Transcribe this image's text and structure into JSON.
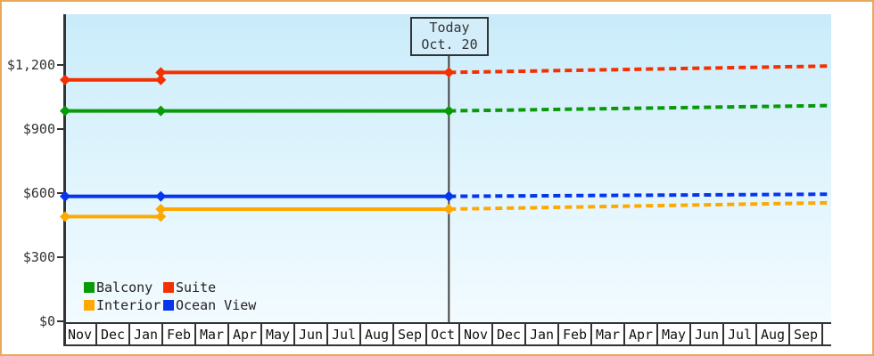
{
  "window": {
    "border_color": "#eba75a"
  },
  "today_box": {
    "line1": "Today",
    "line2": "Oct. 20"
  },
  "chart_data": {
    "type": "line",
    "title": "",
    "xlabel": "",
    "ylabel": "",
    "x_axis": {
      "months": [
        "Nov",
        "Dec",
        "Jan",
        "Feb",
        "Mar",
        "Apr",
        "May",
        "Jun",
        "Jul",
        "Aug",
        "Sep",
        "Oct",
        "Nov",
        "Dec",
        "Jan",
        "Feb",
        "Mar",
        "Apr",
        "May",
        "Jun",
        "Jul",
        "Aug",
        "Sep"
      ]
    },
    "y_axis": {
      "ticks": [
        {
          "label": "$1,200",
          "value": 1200
        },
        {
          "label": "$900",
          "value": 900
        },
        {
          "label": "$600",
          "value": 600
        },
        {
          "label": "$300",
          "value": 300
        },
        {
          "label": "$0",
          "value": 0
        }
      ],
      "ylim": [
        0,
        1437
      ]
    },
    "today_marker": {
      "month_index": 11.63,
      "label": "Oct. 20"
    },
    "projection_end_index": 23.2,
    "legend_position": "bottom-left",
    "grid": false,
    "series": [
      {
        "name": "Suite",
        "color": "#f53000",
        "solid_points": [
          [
            0,
            1130
          ],
          [
            2.9,
            1130
          ],
          [
            2.9,
            1165
          ],
          [
            11.63,
            1165
          ]
        ],
        "dashed_points": [
          [
            11.63,
            1165
          ],
          [
            23.2,
            1195
          ]
        ],
        "markers": [
          [
            0,
            1130
          ],
          [
            2.9,
            1130
          ],
          [
            2.9,
            1165
          ],
          [
            11.63,
            1165
          ]
        ]
      },
      {
        "name": "Balcony",
        "color": "#089a08",
        "solid_points": [
          [
            0,
            985
          ],
          [
            11.63,
            985
          ]
        ],
        "dashed_points": [
          [
            11.63,
            985
          ],
          [
            23.2,
            1010
          ]
        ],
        "markers": [
          [
            0,
            985
          ],
          [
            2.9,
            985
          ],
          [
            11.63,
            985
          ]
        ]
      },
      {
        "name": "Ocean View",
        "color": "#0536ee",
        "solid_points": [
          [
            0,
            585
          ],
          [
            11.63,
            585
          ]
        ],
        "dashed_points": [
          [
            11.63,
            585
          ],
          [
            23.2,
            595
          ]
        ],
        "markers": [
          [
            0,
            585
          ],
          [
            2.9,
            585
          ],
          [
            11.63,
            585
          ]
        ]
      },
      {
        "name": "Interior",
        "color": "#ffa800",
        "solid_points": [
          [
            0,
            490
          ],
          [
            2.9,
            490
          ],
          [
            2.9,
            525
          ],
          [
            11.63,
            525
          ]
        ],
        "dashed_points": [
          [
            11.63,
            525
          ],
          [
            23.2,
            555
          ]
        ],
        "markers": [
          [
            0,
            490
          ],
          [
            2.9,
            490
          ],
          [
            2.9,
            525
          ],
          [
            11.63,
            525
          ]
        ]
      }
    ],
    "legend": [
      {
        "label": "Balcony",
        "color": "#089a08",
        "col": 0,
        "row": 0
      },
      {
        "label": "Suite",
        "color": "#f53000",
        "col": 1,
        "row": 0
      },
      {
        "label": "Interior",
        "color": "#ffa800",
        "col": 0,
        "row": 1
      },
      {
        "label": "Ocean View",
        "color": "#0536ee",
        "col": 1,
        "row": 1
      }
    ]
  }
}
